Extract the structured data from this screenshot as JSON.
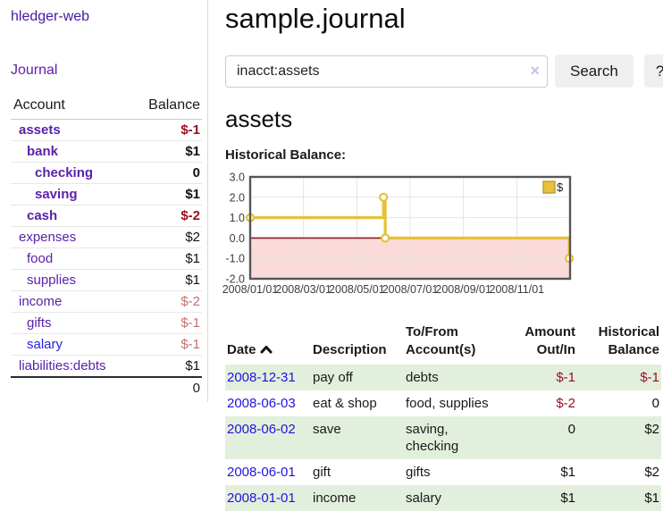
{
  "app": {
    "title": "hledger-web"
  },
  "sidebar": {
    "nav": [
      {
        "label": "Journal"
      }
    ],
    "accounts_table": {
      "headers": {
        "account": "Account",
        "balance": "Balance"
      },
      "rows": [
        {
          "name": "assets",
          "depth": 0,
          "bold": true,
          "balance": "$-1",
          "balance_style": "neg"
        },
        {
          "name": "bank",
          "depth": 1,
          "bold": true,
          "balance": "$1",
          "balance_style": "pos"
        },
        {
          "name": "checking",
          "depth": 2,
          "bold": true,
          "balance": "0",
          "balance_style": "pos"
        },
        {
          "name": "saving",
          "depth": 2,
          "bold": true,
          "balance": "$1",
          "balance_style": "pos"
        },
        {
          "name": "cash",
          "depth": 1,
          "bold": true,
          "balance": "$-2",
          "balance_style": "neg"
        },
        {
          "name": "expenses",
          "depth": 0,
          "bold": false,
          "balance": "$2",
          "balance_style": "pos"
        },
        {
          "name": "food",
          "depth": 1,
          "bold": false,
          "balance": "$1",
          "balance_style": "pos"
        },
        {
          "name": "supplies",
          "depth": 1,
          "bold": false,
          "balance": "$1",
          "balance_style": "pos"
        },
        {
          "name": "income",
          "depth": 0,
          "bold": false,
          "balance": "$-2",
          "balance_style": "neg-faded"
        },
        {
          "name": "gifts",
          "depth": 1,
          "bold": false,
          "balance": "$-1",
          "balance_style": "neg-faded"
        },
        {
          "name": "salary",
          "depth": 1,
          "bold": false,
          "balance": "$-1",
          "balance_style": "neg-faded",
          "link_style": "unvisited"
        },
        {
          "name": "liabilities:debts",
          "depth": 0,
          "bold": false,
          "balance": "$1",
          "balance_style": "pos"
        }
      ],
      "total": "0"
    }
  },
  "header": {
    "title": "sample.journal"
  },
  "search": {
    "value": "inacct:assets",
    "clear_icon": "×",
    "button_label": "Search",
    "help_label": "?"
  },
  "account_page": {
    "title": "assets",
    "chart_label": "Historical Balance:"
  },
  "chart_data": {
    "type": "line",
    "step": true,
    "title": "Historical Balance:",
    "series": [
      {
        "name": "$",
        "color": "#e8c03c",
        "points_months": [
          [
            0,
            1
          ],
          [
            5,
            2
          ],
          [
            5.033,
            2
          ],
          [
            5.067,
            0
          ],
          [
            11.97,
            -1
          ]
        ],
        "marker_points_months": [
          [
            0,
            1
          ],
          [
            5,
            2
          ],
          [
            5.067,
            0
          ],
          [
            11.97,
            -1
          ]
        ]
      }
    ],
    "x_range_months": [
      0,
      12
    ],
    "x_tick_months": [
      0,
      2,
      4,
      6,
      8,
      10
    ],
    "x_tick_labels": [
      "2008/01/01",
      "2008/03/01",
      "2008/05/01",
      "2008/07/01",
      "2008/09/01",
      "2008/11/01"
    ],
    "y_ticks": [
      3.0,
      2.0,
      1.0,
      0.0,
      -1.0,
      -2.0
    ],
    "y_tick_labels": [
      "3.0",
      "2.0",
      "1.0",
      "0.0",
      "-1.0",
      "-2.0"
    ],
    "ylim": [
      -2,
      3
    ],
    "grid": true,
    "legend_position": "top-right",
    "colors": {
      "grid": "#e4e4e4",
      "border": "#565656",
      "negative_region": "#fbdada",
      "zero_line": "#8f1d1d",
      "marker_fill": "#ffffff",
      "legend_swatch_border": "#b89a2e",
      "tick_text": "#3c3c3c"
    }
  },
  "register_table": {
    "headers": {
      "date": "Date",
      "description": "Description",
      "accounts": "To/From Account(s)",
      "amount": "Amount Out/In",
      "balance": "Historical Balance"
    },
    "rows": [
      {
        "date": "2008-12-31",
        "description": "pay off",
        "accounts": "debts",
        "amount": "$-1",
        "amount_style": "neg",
        "balance": "$-1",
        "balance_style": "neg"
      },
      {
        "date": "2008-06-03",
        "description": "eat & shop",
        "accounts": "food, supplies",
        "amount": "$-2",
        "amount_style": "neg",
        "balance": "0",
        "balance_style": "pos"
      },
      {
        "date": "2008-06-02",
        "description": "save",
        "accounts": "saving, checking",
        "amount": "0",
        "amount_style": "pos",
        "balance": "$2",
        "balance_style": "pos"
      },
      {
        "date": "2008-06-01",
        "description": "gift",
        "accounts": "gifts",
        "amount": "$1",
        "amount_style": "pos",
        "balance": "$2",
        "balance_style": "pos"
      },
      {
        "date": "2008-01-01",
        "description": "income",
        "accounts": "salary",
        "amount": "$1",
        "amount_style": "pos",
        "balance": "$1",
        "balance_style": "pos"
      }
    ]
  }
}
